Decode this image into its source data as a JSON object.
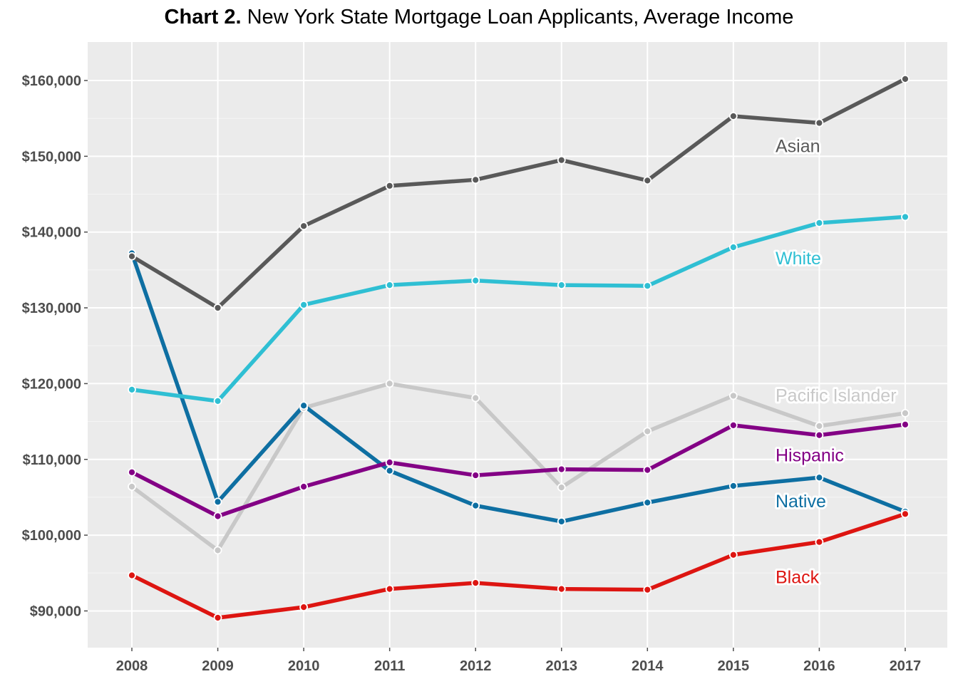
{
  "title": {
    "bold": "Chart 2.",
    "rest": " New York State Mortgage Loan Applicants, Average Income"
  },
  "chart_data": {
    "type": "line",
    "title": "Chart 2. New York State Mortgage Loan Applicants, Average Income",
    "xlabel": "",
    "ylabel": "",
    "x": [
      2008,
      2009,
      2010,
      2011,
      2012,
      2013,
      2014,
      2015,
      2016,
      2017
    ],
    "x_tick_labels": [
      "2008",
      "2009",
      "2010",
      "2011",
      "2012",
      "2013",
      "2014",
      "2015",
      "2016",
      "2017"
    ],
    "ylim": [
      85000,
      165000
    ],
    "y_ticks": [
      90000,
      100000,
      110000,
      120000,
      130000,
      140000,
      150000,
      160000
    ],
    "y_tick_labels": [
      "$90,000",
      "$100,000",
      "$110,000",
      "$120,000",
      "$130,000",
      "$140,000",
      "$150,000",
      "$160,000"
    ],
    "grid": true,
    "legend": "labels at right end of lines",
    "series": [
      {
        "name": "Pacific Islander",
        "color": "#c8c8c8",
        "label_y": 118500,
        "values": [
          106400,
          98000,
          116800,
          120000,
          118100,
          106300,
          113700,
          118400,
          114400,
          116100
        ]
      },
      {
        "name": "Native",
        "color": "#0e6fa2",
        "label_y": 104500,
        "values": [
          137200,
          104400,
          117100,
          108500,
          103900,
          101800,
          104300,
          106500,
          107600,
          103100
        ]
      },
      {
        "name": "Hispanic",
        "color": "#830085",
        "label_y": 110600,
        "values": [
          108300,
          102500,
          106400,
          109600,
          107900,
          108700,
          108600,
          114500,
          113200,
          114600
        ]
      },
      {
        "name": "Black",
        "color": "#dd1511",
        "label_y": 94500,
        "values": [
          94700,
          89100,
          90500,
          92900,
          93700,
          92900,
          92800,
          97400,
          99100,
          102800
        ]
      },
      {
        "name": "White",
        "color": "#2fbfd3",
        "label_y": 136600,
        "values": [
          119200,
          117700,
          130400,
          133000,
          133600,
          133000,
          132900,
          138000,
          141200,
          142000
        ]
      },
      {
        "name": "Asian",
        "color": "#595959",
        "label_y": 151400,
        "values": [
          136800,
          130000,
          140800,
          146100,
          146900,
          149500,
          146800,
          155300,
          154400,
          160200
        ]
      }
    ]
  }
}
